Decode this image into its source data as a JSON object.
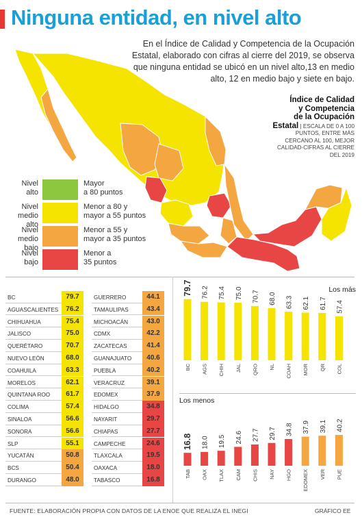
{
  "title": "Ninguna entidad, en nivel alto",
  "intro": "En el Índice de Calidad y Competencia de la Ocupación Estatal, elaborado con cifras al cierre del 2019, se observa que ninguna entidad se ubicó en un nivel alto,13 en medio alto, 12 en medio bajo y siete en bajo.",
  "index_box": {
    "title_lines": [
      "Índice de Calidad",
      "y Competencia",
      "de la Ocupación"
    ],
    "title_last": "Estatal",
    "desc": "Escala de 0 a 100 puntos, entre más cercano al 100, mejor calidad-cifras al cierre del 2019"
  },
  "legend": [
    {
      "label_1": "Nivel",
      "label_2": "alto",
      "desc_1": "Mayor",
      "desc_2": "a 80 puntos",
      "color": "#8dc63f"
    },
    {
      "label_1": "Nivel",
      "label_2": "medio alto",
      "desc_1": "Menor a 80 y",
      "desc_2": "mayor a 55 puntos",
      "color": "#f5e400"
    },
    {
      "label_1": "Nivel",
      "label_2": "medio bajo",
      "desc_1": "Menor a 55 y",
      "desc_2": "mayor a 35 puntos",
      "color": "#f4a640"
    },
    {
      "label_1": "Nivel",
      "label_2": "bajo",
      "desc_1": "Menor a",
      "desc_2": "35 puntos",
      "color": "#e84545"
    }
  ],
  "colors": {
    "medio_alto": "#f5e400",
    "medio_bajo": "#f4a640",
    "bajo": "#e84545"
  },
  "table_left": [
    {
      "state": "BC",
      "value": "79.7"
    },
    {
      "state": "Aguascalientes",
      "value": "76.2"
    },
    {
      "state": "Chihuahua",
      "value": "75.4"
    },
    {
      "state": "Jalisco",
      "value": "75.0"
    },
    {
      "state": "Querétaro",
      "value": "70.7"
    },
    {
      "state": "Nuevo León",
      "value": "68.0"
    },
    {
      "state": "Coahuila",
      "value": "63.3"
    },
    {
      "state": "Morelos",
      "value": "62.1"
    },
    {
      "state": "Quintana Roo",
      "value": "61.7"
    },
    {
      "state": "Colima",
      "value": "57.4"
    },
    {
      "state": "Sinaloa",
      "value": "56.6"
    },
    {
      "state": "Sonora",
      "value": "56.6"
    },
    {
      "state": "SLP",
      "value": "55.1"
    },
    {
      "state": "Yucatán",
      "value": "50.8"
    },
    {
      "state": "BCS",
      "value": "50.4"
    },
    {
      "state": "Durango",
      "value": "48.0"
    }
  ],
  "table_right": [
    {
      "state": "Guerrero",
      "value": "44.1"
    },
    {
      "state": "Tamaulipas",
      "value": "43.4"
    },
    {
      "state": "Michoacán",
      "value": "43.0"
    },
    {
      "state": "CDMX",
      "value": "42.2"
    },
    {
      "state": "Zacatecas",
      "value": "41.4"
    },
    {
      "state": "Guanajuato",
      "value": "40.6"
    },
    {
      "state": "Puebla",
      "value": "40.2"
    },
    {
      "state": "Veracruz",
      "value": "39.1"
    },
    {
      "state": "Edomex",
      "value": "37.9"
    },
    {
      "state": "Hidalgo",
      "value": "34.8"
    },
    {
      "state": "Nayarit",
      "value": "29.7"
    },
    {
      "state": "Chiapas",
      "value": "27.7"
    },
    {
      "state": "Campeche",
      "value": "24.6"
    },
    {
      "state": "Tlaxcala",
      "value": "19.5"
    },
    {
      "state": "Oaxaca",
      "value": "18.0"
    },
    {
      "state": "Tabasco",
      "value": "16.8"
    }
  ],
  "chart_data": [
    {
      "type": "bar",
      "title": "Los más",
      "categories": [
        "BC",
        "AGS",
        "CHIH",
        "JAL",
        "QRO",
        "NL",
        "COAH",
        "MOR",
        "QR",
        "COL"
      ],
      "values": [
        79.7,
        76.2,
        75.4,
        75.0,
        70.7,
        68.0,
        63.3,
        62.1,
        61.7,
        57.4
      ],
      "value_labels": [
        "79.7",
        "76.2",
        "75.4",
        "75.0",
        "70.7",
        "68.0",
        "63.3",
        "62.1",
        "61.7",
        "57.4"
      ],
      "ylim": [
        0,
        80
      ],
      "grid": false
    },
    {
      "type": "bar",
      "title": "Los menos",
      "categories": [
        "TAB",
        "OAX",
        "TLAX",
        "CAM",
        "CHIS",
        "NAY",
        "HGO",
        "EDOMEX",
        "VER",
        "PUE"
      ],
      "values": [
        16.8,
        18.0,
        19.5,
        24.6,
        27.7,
        29.7,
        34.8,
        37.9,
        39.1,
        40.2
      ],
      "value_labels": [
        "16.8",
        "18.0",
        "19.5",
        "24.6",
        "27.7",
        "29.7",
        "34.8",
        "37.9",
        "39.1",
        "40.2"
      ],
      "ylim": [
        0,
        80
      ],
      "grid": false
    }
  ],
  "footer": "FUENTE: ELABORACIÓN PROPIA CON DATOS DE LA ENOE QUE REALIZA EL INEGI",
  "credit": "GRÁFICO EE"
}
